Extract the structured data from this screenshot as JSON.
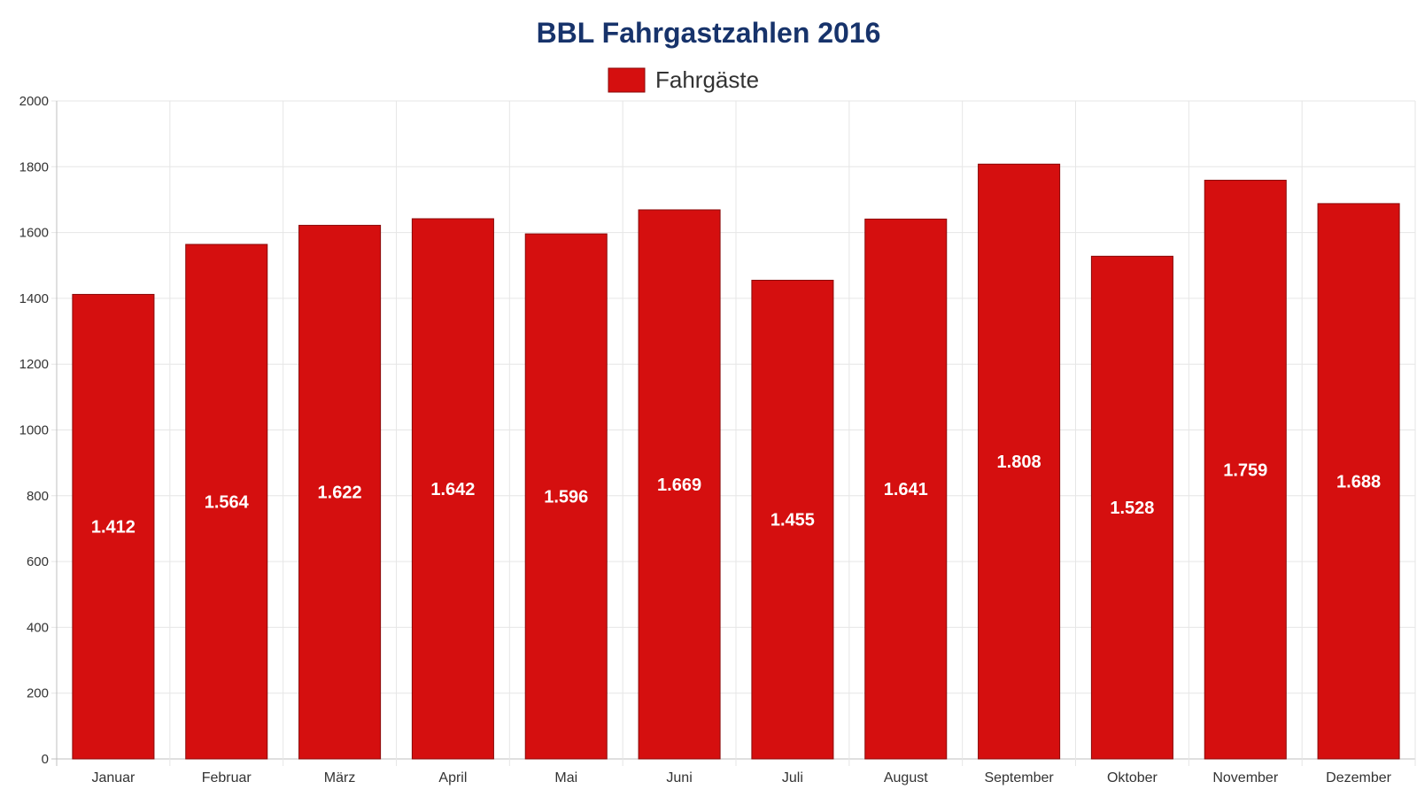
{
  "chart_data": {
    "type": "bar",
    "title": "BBL Fahrgastzahlen 2016",
    "categories": [
      "Januar",
      "Februar",
      "März",
      "April",
      "Mai",
      "Juni",
      "Juli",
      "August",
      "September",
      "Oktober",
      "November",
      "Dezember"
    ],
    "series": [
      {
        "name": "Fahrgäste",
        "values": [
          1412,
          1564,
          1622,
          1642,
          1596,
          1669,
          1455,
          1641,
          1808,
          1528,
          1759,
          1688
        ],
        "data_labels": [
          "1.412",
          "1.564",
          "1.622",
          "1.642",
          "1.596",
          "1.669",
          "1.455",
          "1.641",
          "1.808",
          "1.528",
          "1.759",
          "1.688"
        ]
      }
    ],
    "ylim": [
      0,
      2000
    ],
    "yticks": [
      0,
      200,
      400,
      600,
      800,
      1000,
      1200,
      1400,
      1600,
      1800,
      2000
    ],
    "xlabel": "",
    "ylabel": "",
    "grid": true,
    "legend": "top-center",
    "colors": {
      "title": "#17336b",
      "bar": "#d50f0f",
      "bar_border": "#8a0a0a"
    }
  }
}
